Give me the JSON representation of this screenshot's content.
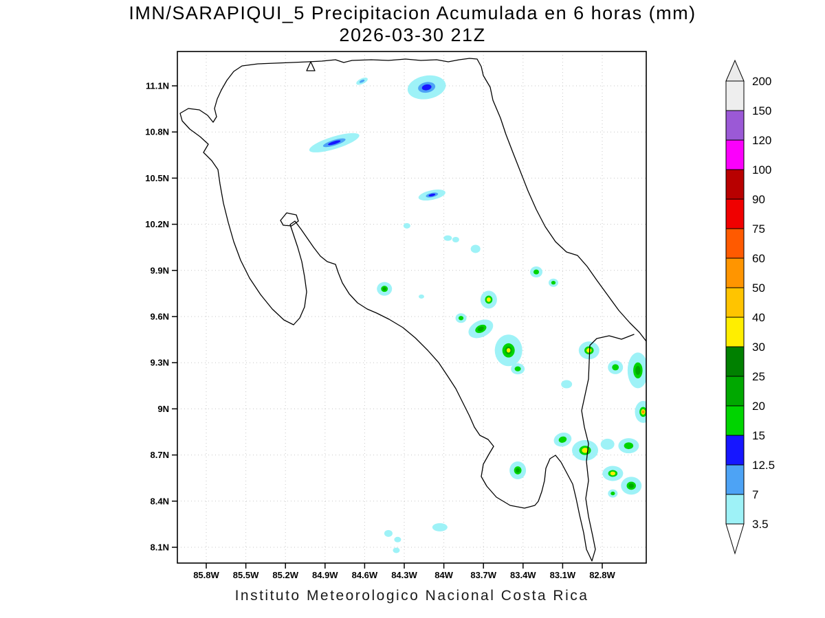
{
  "title": {
    "line1": "IMN/SARAPIQUI_5 Precipitacion Acumulada en 6 horas (mm)",
    "line2": "2026-03-30 21Z"
  },
  "footer": {
    "text": "Instituto Meteorologico Nacional Costa Rica"
  },
  "colorbar": {
    "levels_mm": [
      3.5,
      7,
      12.5,
      15,
      20,
      25,
      30,
      40,
      50,
      60,
      75,
      90,
      100,
      120,
      150,
      200
    ],
    "level_colors": {
      "3.5": "#9ef2f7",
      "7": "#4da3f5",
      "12.5": "#1616ff",
      "15": "#00d400",
      "20": "#00a800",
      "25": "#008000",
      "30": "#ffee00",
      "40": "#ffc400",
      "50": "#ff9500",
      "60": "#ff5a00",
      "75": "#f00000",
      "90": "#b80000",
      "100": "#fb00fb",
      "120": "#9b59d6",
      "150": "#eeeeee"
    },
    "above_max_color": "#ebebeb",
    "below_min_color": "#ffffff"
  },
  "chart_data": {
    "type": "heatmap",
    "title": "IMN/SARAPIQUI_5 Precipitacion Acumulada en 6 horas (mm)",
    "subtitle": "2026-03-30 21Z",
    "units": "mm",
    "grid": "dotted",
    "legend_position": "right",
    "x_axis": {
      "ticks": [
        "85.8W",
        "85.5W",
        "85.2W",
        "84.9W",
        "84.6W",
        "84.3W",
        "84W",
        "83.7W",
        "83.4W",
        "83.1W",
        "82.8W"
      ],
      "min_lon_west": 86.02,
      "max_lon_west": 82.47
    },
    "y_axis": {
      "ticks": [
        "11.1N",
        "10.8N",
        "10.5N",
        "10.2N",
        "9.9N",
        "9.6N",
        "9.3N",
        "9N",
        "8.7N",
        "8.4N",
        "8.1N"
      ],
      "min_lat_north": 8.0,
      "max_lat_north": 11.32
    },
    "levels_mm": [
      3.5,
      7,
      12.5,
      15,
      20,
      25,
      30,
      40,
      50,
      60,
      75,
      90,
      100,
      120,
      150,
      200
    ],
    "cells": [
      {
        "lon_w": 84.62,
        "lat_n": 11.13,
        "rx": 9,
        "ry": 4,
        "rot": -25,
        "levels": [
          3.5,
          7
        ],
        "max_mm": 7
      },
      {
        "lon_w": 84.13,
        "lat_n": 11.09,
        "rx": 28,
        "ry": 17,
        "rot": -10,
        "levels": [
          3.5,
          7,
          12.5
        ],
        "max_mm": 12.5
      },
      {
        "lon_w": 84.83,
        "lat_n": 10.73,
        "rx": 38,
        "ry": 9,
        "rot": -17,
        "levels": [
          3.5,
          7,
          12.5
        ],
        "max_mm": 12.5
      },
      {
        "lon_w": 84.09,
        "lat_n": 10.39,
        "rx": 20,
        "ry": 7,
        "rot": -12,
        "levels": [
          3.5,
          7,
          12.5
        ],
        "max_mm": 12.5
      },
      {
        "lon_w": 84.28,
        "lat_n": 10.19,
        "rx": 5,
        "ry": 4,
        "rot": 0,
        "levels": [
          3.5
        ],
        "max_mm": 3.5
      },
      {
        "lon_w": 83.97,
        "lat_n": 10.11,
        "rx": 6,
        "ry": 4,
        "rot": 0,
        "levels": [
          3.5
        ],
        "max_mm": 3.5
      },
      {
        "lon_w": 83.91,
        "lat_n": 10.1,
        "rx": 5,
        "ry": 4,
        "rot": 0,
        "levels": [
          3.5
        ],
        "max_mm": 3.5
      },
      {
        "lon_w": 83.76,
        "lat_n": 10.04,
        "rx": 7,
        "ry": 6,
        "rot": 0,
        "levels": [
          3.5
        ],
        "max_mm": 3.5
      },
      {
        "lon_w": 83.3,
        "lat_n": 9.89,
        "rx": 9,
        "ry": 8,
        "rot": 0,
        "levels": [
          3.5,
          15
        ],
        "max_mm": 15
      },
      {
        "lon_w": 83.17,
        "lat_n": 9.82,
        "rx": 7,
        "ry": 6,
        "rot": 0,
        "levels": [
          3.5,
          15
        ],
        "max_mm": 15
      },
      {
        "lon_w": 84.45,
        "lat_n": 9.78,
        "rx": 11,
        "ry": 10,
        "rot": 0,
        "levels": [
          3.5,
          15,
          20
        ],
        "max_mm": 20
      },
      {
        "lon_w": 84.17,
        "lat_n": 9.73,
        "rx": 4,
        "ry": 3,
        "rot": 0,
        "levels": [
          3.5
        ],
        "max_mm": 3.5
      },
      {
        "lon_w": 83.66,
        "lat_n": 9.71,
        "rx": 12,
        "ry": 13,
        "rot": 0,
        "levels": [
          3.5,
          15,
          30
        ],
        "max_mm": 30
      },
      {
        "lon_w": 83.87,
        "lat_n": 9.59,
        "rx": 8,
        "ry": 7,
        "rot": 0,
        "levels": [
          3.5,
          15
        ],
        "max_mm": 15
      },
      {
        "lon_w": 83.72,
        "lat_n": 9.52,
        "rx": 19,
        "ry": 12,
        "rot": -25,
        "levels": [
          3.5,
          15,
          20
        ],
        "max_mm": 20
      },
      {
        "lon_w": 83.51,
        "lat_n": 9.38,
        "rx": 20,
        "ry": 23,
        "rot": 0,
        "levels": [
          3.5,
          15,
          20,
          30
        ],
        "max_mm": 30
      },
      {
        "lon_w": 83.44,
        "lat_n": 9.26,
        "rx": 10,
        "ry": 8,
        "rot": 0,
        "levels": [
          3.5,
          15
        ],
        "max_mm": 15
      },
      {
        "lon_w": 83.07,
        "lat_n": 9.16,
        "rx": 8,
        "ry": 6,
        "rot": 0,
        "levels": [
          3.5
        ],
        "max_mm": 3.5
      },
      {
        "lon_w": 82.9,
        "lat_n": 9.38,
        "rx": 15,
        "ry": 13,
        "rot": 0,
        "levels": [
          3.5,
          15,
          30
        ],
        "max_mm": 30
      },
      {
        "lon_w": 82.7,
        "lat_n": 9.27,
        "rx": 11,
        "ry": 10,
        "rot": 0,
        "levels": [
          3.5,
          15
        ],
        "max_mm": 15
      },
      {
        "lon_w": 82.53,
        "lat_n": 9.25,
        "rx": 15,
        "ry": 26,
        "rot": 0,
        "levels": [
          3.5,
          15,
          20
        ],
        "max_mm": 20
      },
      {
        "lon_w": 82.49,
        "lat_n": 8.98,
        "rx": 12,
        "ry": 16,
        "rot": 0,
        "levels": [
          3.5,
          15,
          30,
          50
        ],
        "max_mm": 50
      },
      {
        "lon_w": 83.1,
        "lat_n": 8.8,
        "rx": 13,
        "ry": 10,
        "rot": -15,
        "levels": [
          3.5,
          15
        ],
        "max_mm": 15
      },
      {
        "lon_w": 82.93,
        "lat_n": 8.73,
        "rx": 19,
        "ry": 15,
        "rot": 0,
        "levels": [
          3.5,
          15,
          30
        ],
        "max_mm": 30
      },
      {
        "lon_w": 82.76,
        "lat_n": 8.77,
        "rx": 10,
        "ry": 8,
        "rot": 0,
        "levels": [
          3.5
        ],
        "max_mm": 3.5
      },
      {
        "lon_w": 82.6,
        "lat_n": 8.76,
        "rx": 15,
        "ry": 11,
        "rot": 0,
        "levels": [
          3.5,
          15
        ],
        "max_mm": 15
      },
      {
        "lon_w": 83.44,
        "lat_n": 8.6,
        "rx": 12,
        "ry": 13,
        "rot": 0,
        "levels": [
          3.5,
          15,
          20
        ],
        "max_mm": 20
      },
      {
        "lon_w": 82.72,
        "lat_n": 8.58,
        "rx": 15,
        "ry": 11,
        "rot": 0,
        "levels": [
          3.5,
          15,
          30
        ],
        "max_mm": 30
      },
      {
        "lon_w": 82.58,
        "lat_n": 8.5,
        "rx": 15,
        "ry": 13,
        "rot": 0,
        "levels": [
          3.5,
          15,
          20
        ],
        "max_mm": 20
      },
      {
        "lon_w": 82.72,
        "lat_n": 8.45,
        "rx": 7,
        "ry": 6,
        "rot": 0,
        "levels": [
          3.5,
          15
        ],
        "max_mm": 15
      },
      {
        "lon_w": 84.42,
        "lat_n": 8.19,
        "rx": 6,
        "ry": 5,
        "rot": 0,
        "levels": [
          3.5
        ],
        "max_mm": 3.5
      },
      {
        "lon_w": 84.35,
        "lat_n": 8.15,
        "rx": 5,
        "ry": 4,
        "rot": 0,
        "levels": [
          3.5
        ],
        "max_mm": 3.5
      },
      {
        "lon_w": 84.03,
        "lat_n": 8.23,
        "rx": 11,
        "ry": 6,
        "rot": 0,
        "levels": [
          3.5
        ],
        "max_mm": 3.5
      },
      {
        "lon_w": 84.36,
        "lat_n": 8.08,
        "rx": 5,
        "ry": 4,
        "rot": 0,
        "levels": [
          3.5
        ],
        "max_mm": 3.5
      }
    ]
  }
}
